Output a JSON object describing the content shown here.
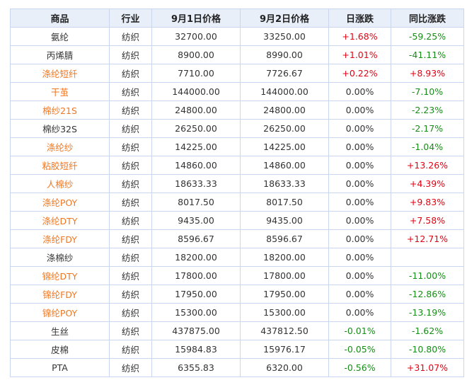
{
  "colors": {
    "header_bg": "#e8eff9",
    "border": "#c9d6ee",
    "link": "#f07722",
    "up": "#e60012",
    "down": "#1a8c1a",
    "text": "#333333"
  },
  "columns": [
    "商品",
    "行业",
    "9月1日价格",
    "9月2日价格",
    "日涨跌",
    "同比涨跌"
  ],
  "rows": [
    {
      "name": "氨纶",
      "link": false,
      "industry": "纺织",
      "p1": "32700.00",
      "p2": "33250.00",
      "daily": "+1.68%",
      "daily_dir": "up",
      "yoy": "-59.25%",
      "yoy_dir": "down"
    },
    {
      "name": "丙烯腈",
      "link": false,
      "industry": "纺织",
      "p1": "8900.00",
      "p2": "8990.00",
      "daily": "+1.01%",
      "daily_dir": "up",
      "yoy": "-41.11%",
      "yoy_dir": "down"
    },
    {
      "name": "涤纶短纤",
      "link": true,
      "industry": "纺织",
      "p1": "7710.00",
      "p2": "7726.67",
      "daily": "+0.22%",
      "daily_dir": "up",
      "yoy": "+8.93%",
      "yoy_dir": "up"
    },
    {
      "name": "干茧",
      "link": true,
      "industry": "纺织",
      "p1": "144000.00",
      "p2": "144000.00",
      "daily": "0.00%",
      "daily_dir": "neutral",
      "yoy": "-7.10%",
      "yoy_dir": "down"
    },
    {
      "name": "棉纱21S",
      "link": true,
      "industry": "纺织",
      "p1": "24800.00",
      "p2": "24800.00",
      "daily": "0.00%",
      "daily_dir": "neutral",
      "yoy": "-2.23%",
      "yoy_dir": "down"
    },
    {
      "name": "棉纱32S",
      "link": false,
      "industry": "纺织",
      "p1": "26250.00",
      "p2": "26250.00",
      "daily": "0.00%",
      "daily_dir": "neutral",
      "yoy": "-2.17%",
      "yoy_dir": "down"
    },
    {
      "name": "涤纶纱",
      "link": true,
      "industry": "纺织",
      "p1": "14225.00",
      "p2": "14225.00",
      "daily": "0.00%",
      "daily_dir": "neutral",
      "yoy": "-1.04%",
      "yoy_dir": "down"
    },
    {
      "name": "粘胶短纤",
      "link": true,
      "industry": "纺织",
      "p1": "14860.00",
      "p2": "14860.00",
      "daily": "0.00%",
      "daily_dir": "neutral",
      "yoy": "+13.26%",
      "yoy_dir": "up"
    },
    {
      "name": "人棉纱",
      "link": true,
      "industry": "纺织",
      "p1": "18633.33",
      "p2": "18633.33",
      "daily": "0.00%",
      "daily_dir": "neutral",
      "yoy": "+4.39%",
      "yoy_dir": "up"
    },
    {
      "name": "涤纶POY",
      "link": true,
      "industry": "纺织",
      "p1": "8017.50",
      "p2": "8017.50",
      "daily": "0.00%",
      "daily_dir": "neutral",
      "yoy": "+9.83%",
      "yoy_dir": "up"
    },
    {
      "name": "涤纶DTY",
      "link": true,
      "industry": "纺织",
      "p1": "9435.00",
      "p2": "9435.00",
      "daily": "0.00%",
      "daily_dir": "neutral",
      "yoy": "+7.58%",
      "yoy_dir": "up"
    },
    {
      "name": "涤纶FDY",
      "link": true,
      "industry": "纺织",
      "p1": "8596.67",
      "p2": "8596.67",
      "daily": "0.00%",
      "daily_dir": "neutral",
      "yoy": "+12.71%",
      "yoy_dir": "up"
    },
    {
      "name": "涤棉纱",
      "link": false,
      "industry": "纺织",
      "p1": "18200.00",
      "p2": "18200.00",
      "daily": "0.00%",
      "daily_dir": "neutral",
      "yoy": "",
      "yoy_dir": "neutral"
    },
    {
      "name": "锦纶DTY",
      "link": true,
      "industry": "纺织",
      "p1": "17800.00",
      "p2": "17800.00",
      "daily": "0.00%",
      "daily_dir": "neutral",
      "yoy": "-11.00%",
      "yoy_dir": "down"
    },
    {
      "name": "锦纶FDY",
      "link": true,
      "industry": "纺织",
      "p1": "17950.00",
      "p2": "17950.00",
      "daily": "0.00%",
      "daily_dir": "neutral",
      "yoy": "-12.86%",
      "yoy_dir": "down"
    },
    {
      "name": "锦纶POY",
      "link": true,
      "industry": "纺织",
      "p1": "15300.00",
      "p2": "15300.00",
      "daily": "0.00%",
      "daily_dir": "neutral",
      "yoy": "-13.19%",
      "yoy_dir": "down"
    },
    {
      "name": "生丝",
      "link": false,
      "industry": "纺织",
      "p1": "437875.00",
      "p2": "437812.50",
      "daily": "-0.01%",
      "daily_dir": "down",
      "yoy": "-1.62%",
      "yoy_dir": "down"
    },
    {
      "name": "皮棉",
      "link": false,
      "industry": "纺织",
      "p1": "15984.83",
      "p2": "15976.17",
      "daily": "-0.05%",
      "daily_dir": "down",
      "yoy": "-10.80%",
      "yoy_dir": "down"
    },
    {
      "name": "PTA",
      "link": false,
      "industry": "纺织",
      "p1": "6355.83",
      "p2": "6320.00",
      "daily": "-0.56%",
      "daily_dir": "down",
      "yoy": "+31.07%",
      "yoy_dir": "up"
    }
  ]
}
